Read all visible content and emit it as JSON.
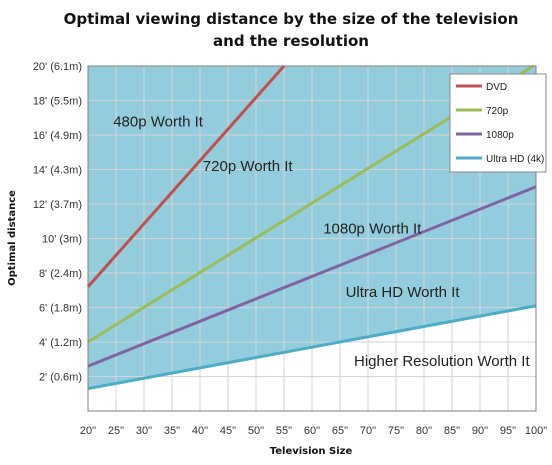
{
  "chart_data": {
    "type": "area",
    "title_lines": [
      "Optimal viewing distance by the size of the television",
      "and the resolution"
    ],
    "xlabel": "Television Size",
    "ylabel": "Optimal distance",
    "x_ticks": [
      20,
      25,
      30,
      35,
      40,
      45,
      50,
      55,
      60,
      65,
      70,
      75,
      80,
      85,
      90,
      95,
      100
    ],
    "x_tick_labels": [
      "20\"",
      "25\"",
      "30\"",
      "35\"",
      "40\"",
      "45\"",
      "50\"",
      "55\"",
      "60\"",
      "65\"",
      "70\"",
      "75\"",
      "80\"",
      "85\"",
      "90\"",
      "95\"",
      "100\""
    ],
    "y_ticks": [
      2,
      4,
      6,
      8,
      10,
      12,
      14,
      16,
      18,
      20
    ],
    "y_tick_labels": [
      "2' (0.6m)",
      "4' (1.2m)",
      "6' (1.8m)",
      "8' (2.4m)",
      "10' (3m)",
      "12' (3.7m)",
      "14' (4.3m)",
      "16' (4.9m)",
      "18' (5.5m)",
      "20' (6.1m)"
    ],
    "xlim": [
      20,
      100
    ],
    "ylim": [
      0,
      20
    ],
    "grid": true,
    "legend_position": "top-right",
    "series": [
      {
        "name": "DVD",
        "color": "#c0504d",
        "fill": "#d99694",
        "x": [
          20,
          55
        ],
        "y": [
          7.2,
          20
        ]
      },
      {
        "name": "720p",
        "color": "#9bbb59",
        "fill": "#c3d69b",
        "x": [
          20,
          100
        ],
        "y": [
          4.0,
          20.1
        ]
      },
      {
        "name": "1080p",
        "color": "#8064a2",
        "fill": "#b3a2c7",
        "x": [
          20,
          100
        ],
        "y": [
          2.6,
          13.0
        ]
      },
      {
        "name": "Ultra HD (4k)",
        "color": "#4bacc6",
        "fill": "#93cddd",
        "x": [
          20,
          100
        ],
        "y": [
          1.3,
          6.1
        ]
      }
    ],
    "region_labels": [
      {
        "text": "480p Worth It",
        "x": 24.5,
        "y": 16.5
      },
      {
        "text": "720p Worth It",
        "x": 40.5,
        "y": 13.9
      },
      {
        "text": "1080p Worth It",
        "x": 62,
        "y": 10.3
      },
      {
        "text": "Ultra HD Worth It",
        "x": 66,
        "y": 6.6
      },
      {
        "text": "Higher Resolution Worth It",
        "x": 67.5,
        "y": 2.6
      }
    ]
  }
}
